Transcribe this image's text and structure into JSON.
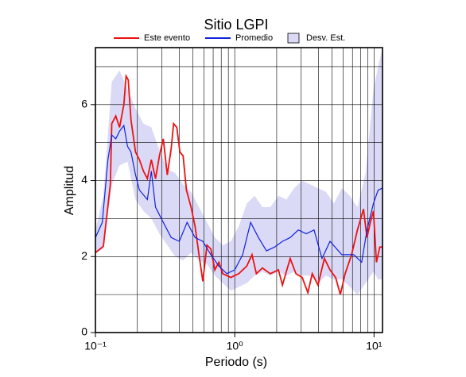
{
  "chart_data": {
    "type": "line",
    "title": "Sitio LGPI",
    "x_label": "Periodo (s)",
    "y_label": "Amplitud",
    "x_scale": "log",
    "xlim": [
      0.1,
      11.5
    ],
    "ylim": [
      0,
      7.5
    ],
    "xticks": [
      {
        "value": 0.1,
        "label": "10⁻¹"
      },
      {
        "value": 1,
        "label": "10⁰"
      },
      {
        "value": 10,
        "label": "10¹"
      }
    ],
    "xgrid": [
      0.2,
      0.3,
      0.4,
      0.5,
      0.6,
      0.7,
      0.8,
      0.9,
      2,
      3,
      4,
      5,
      6,
      7,
      8,
      9
    ],
    "yticks": [
      0,
      2,
      4,
      6
    ],
    "ygrid": [
      1,
      2,
      3,
      4,
      5,
      6,
      7
    ],
    "grid": true,
    "series": [
      {
        "name": "Este evento",
        "color": "#ee1111",
        "x": [
          0.1,
          0.114,
          0.128,
          0.131,
          0.14,
          0.149,
          0.16,
          0.166,
          0.172,
          0.18,
          0.194,
          0.207,
          0.221,
          0.236,
          0.252,
          0.27,
          0.288,
          0.307,
          0.328,
          0.35,
          0.364,
          0.384,
          0.404,
          0.426,
          0.45,
          0.486,
          0.519,
          0.554,
          0.59,
          0.632,
          0.674,
          0.72,
          0.769,
          0.82,
          0.936,
          1.07,
          1.22,
          1.33,
          1.43,
          1.58,
          1.8,
          2.06,
          2.2,
          2.5,
          2.75,
          3.05,
          3.35,
          3.6,
          3.96,
          4.4,
          4.83,
          5.3,
          5.73,
          6.2,
          6.9,
          7.6,
          8.4,
          8.9,
          9.4,
          9.9,
          10.4,
          11.0,
          11.5
        ],
        "values": [
          2.1,
          2.27,
          3.9,
          5.5,
          5.7,
          5.4,
          6.0,
          6.75,
          6.65,
          5.6,
          4.75,
          4.55,
          4.25,
          4.05,
          4.55,
          4.05,
          4.65,
          5.1,
          4.15,
          4.85,
          5.5,
          5.4,
          4.75,
          4.65,
          3.75,
          3.3,
          2.8,
          2.05,
          1.35,
          2.3,
          2.2,
          1.65,
          1.85,
          1.55,
          1.45,
          1.55,
          1.75,
          2.05,
          1.55,
          1.7,
          1.55,
          1.65,
          1.25,
          1.95,
          1.55,
          1.45,
          1.05,
          1.55,
          1.25,
          1.95,
          1.65,
          1.45,
          1.0,
          1.55,
          2.05,
          2.7,
          3.25,
          2.5,
          2.9,
          3.2,
          1.85,
          2.25,
          2.25
        ]
      },
      {
        "name": "Promedio",
        "color": "#1122dd",
        "x": [
          0.1,
          0.112,
          0.123,
          0.131,
          0.14,
          0.149,
          0.16,
          0.17,
          0.18,
          0.194,
          0.207,
          0.236,
          0.252,
          0.27,
          0.307,
          0.35,
          0.4,
          0.455,
          0.519,
          0.59,
          0.674,
          0.769,
          0.877,
          1.0,
          1.14,
          1.3,
          1.48,
          1.69,
          1.93,
          2.2,
          2.5,
          2.86,
          3.26,
          3.71,
          4.23,
          4.83,
          5.87,
          7.15,
          8.15,
          8.9,
          9.9,
          10.7,
          11.5
        ],
        "values": [
          2.5,
          2.9,
          4.55,
          5.2,
          5.1,
          5.3,
          5.45,
          4.9,
          4.75,
          4.15,
          3.75,
          3.5,
          4.25,
          3.3,
          2.9,
          2.5,
          2.4,
          2.9,
          2.5,
          2.4,
          2.05,
          1.75,
          1.55,
          1.65,
          2.05,
          2.9,
          2.5,
          2.15,
          2.25,
          2.4,
          2.5,
          2.7,
          2.6,
          2.7,
          1.95,
          2.4,
          2.05,
          2.05,
          1.85,
          2.7,
          3.4,
          3.75,
          3.8
        ]
      }
    ],
    "band": {
      "name": "Desv. Est.",
      "color": "#dadaf7",
      "x": [
        0.1,
        0.114,
        0.131,
        0.149,
        0.17,
        0.194,
        0.221,
        0.252,
        0.288,
        0.328,
        0.374,
        0.426,
        0.486,
        0.554,
        0.632,
        0.72,
        0.82,
        0.936,
        1.07,
        1.22,
        1.39,
        1.58,
        1.8,
        2.06,
        2.35,
        2.67,
        3.05,
        3.48,
        3.96,
        4.52,
        5.15,
        5.87,
        6.7,
        7.6,
        8.7,
        9.9,
        10.7,
        11.5
      ],
      "lower": [
        2.1,
        2.2,
        3.9,
        4.4,
        4.5,
        3.5,
        3.2,
        3.0,
        2.6,
        2.3,
        2.0,
        1.9,
        2.1,
        1.9,
        1.8,
        1.5,
        1.3,
        1.1,
        1.2,
        1.3,
        1.5,
        1.6,
        1.5,
        1.6,
        1.5,
        1.6,
        1.5,
        1.5,
        1.3,
        1.5,
        1.4,
        1.4,
        1.2,
        1.0,
        1.3,
        1.6,
        1.4,
        1.4
      ],
      "upper": [
        2.7,
        3.6,
        6.6,
        6.9,
        6.4,
        5.9,
        5.5,
        5.4,
        4.8,
        4.3,
        4.2,
        3.9,
        3.7,
        3.3,
        2.9,
        2.5,
        2.3,
        2.4,
        2.8,
        3.4,
        3.6,
        3.3,
        3.3,
        3.6,
        3.5,
        3.8,
        4.0,
        3.9,
        3.8,
        3.7,
        3.4,
        3.8,
        3.6,
        3.3,
        4.2,
        6.4,
        7.0,
        7.5
      ]
    }
  }
}
